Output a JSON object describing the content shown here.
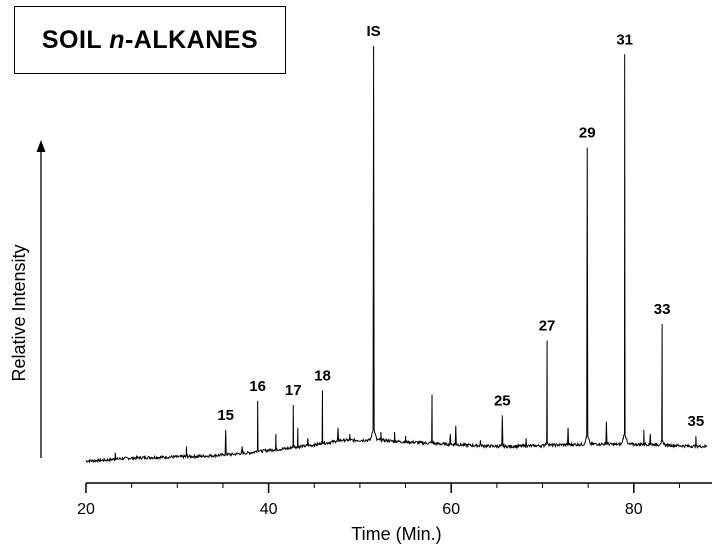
{
  "title": {
    "prefix": "SOIL ",
    "italic": "n",
    "suffix": "-ALKANES"
  },
  "chart_data": {
    "type": "line",
    "title": "SOIL n-ALKANES",
    "xlabel": "Time (Min.)",
    "ylabel": "Relative Intensity",
    "xlim": [
      20,
      88
    ],
    "ylim": [
      0,
      100
    ],
    "xticks": [
      20,
      40,
      60,
      80
    ],
    "y_axis_ticks": false,
    "baseline": [
      [
        20.0,
        0.0
      ],
      [
        22.0,
        0.2
      ],
      [
        24.0,
        0.6
      ],
      [
        26.0,
        0.8
      ],
      [
        28.0,
        0.9
      ],
      [
        30.0,
        1.0
      ],
      [
        32.0,
        1.1
      ],
      [
        34.0,
        1.3
      ],
      [
        36.0,
        1.6
      ],
      [
        38.0,
        2.0
      ],
      [
        40.0,
        2.6
      ],
      [
        42.0,
        3.0
      ],
      [
        44.0,
        3.6
      ],
      [
        46.0,
        4.2
      ],
      [
        48.0,
        5.0
      ],
      [
        50.0,
        5.0
      ],
      [
        52.0,
        5.1
      ],
      [
        54.0,
        4.7
      ],
      [
        56.0,
        4.5
      ],
      [
        58.0,
        4.2
      ],
      [
        60.0,
        4.0
      ],
      [
        62.0,
        3.8
      ],
      [
        64.0,
        3.6
      ],
      [
        66.0,
        3.5
      ],
      [
        68.0,
        3.6
      ],
      [
        70.0,
        3.7
      ],
      [
        72.0,
        3.9
      ],
      [
        74.0,
        4.0
      ],
      [
        76.0,
        4.1
      ],
      [
        78.0,
        4.0
      ],
      [
        80.0,
        4.0
      ],
      [
        82.0,
        4.0
      ],
      [
        84.0,
        3.8
      ],
      [
        86.0,
        3.6
      ],
      [
        88.0,
        3.5
      ]
    ],
    "peaks": [
      {
        "x": 23.2,
        "y": 2.0
      },
      {
        "x": 31.0,
        "y": 3.5
      },
      {
        "x": 35.3,
        "y": 7.5,
        "label": "15"
      },
      {
        "x": 37.1,
        "y": 3.5
      },
      {
        "x": 38.8,
        "y": 14.5,
        "label": "16"
      },
      {
        "x": 40.8,
        "y": 6.5
      },
      {
        "x": 42.7,
        "y": 13.5,
        "label": "17"
      },
      {
        "x": 43.2,
        "y": 8.0
      },
      {
        "x": 44.3,
        "y": 5.5
      },
      {
        "x": 45.9,
        "y": 17.0,
        "label": "18"
      },
      {
        "x": 47.6,
        "y": 8.0
      },
      {
        "x": 48.9,
        "y": 6.5
      },
      {
        "x": 51.5,
        "y": 100.0,
        "label": "IS"
      },
      {
        "x": 52.3,
        "y": 7.0
      },
      {
        "x": 53.8,
        "y": 7.0
      },
      {
        "x": 55.0,
        "y": 6.0
      },
      {
        "x": 57.9,
        "y": 16.0
      },
      {
        "x": 59.9,
        "y": 6.5
      },
      {
        "x": 60.5,
        "y": 8.5
      },
      {
        "x": 63.2,
        "y": 5.0
      },
      {
        "x": 65.6,
        "y": 11.0,
        "label": "25"
      },
      {
        "x": 68.2,
        "y": 5.5
      },
      {
        "x": 70.5,
        "y": 29.0,
        "label": "27"
      },
      {
        "x": 72.8,
        "y": 8.0
      },
      {
        "x": 74.9,
        "y": 75.5,
        "label": "29"
      },
      {
        "x": 77.0,
        "y": 9.5
      },
      {
        "x": 79.0,
        "y": 98.0,
        "label": "31"
      },
      {
        "x": 81.1,
        "y": 7.5
      },
      {
        "x": 81.8,
        "y": 6.5
      },
      {
        "x": 83.1,
        "y": 33.0,
        "label": "33"
      },
      {
        "x": 86.8,
        "y": 6.0,
        "label": "35"
      }
    ]
  }
}
